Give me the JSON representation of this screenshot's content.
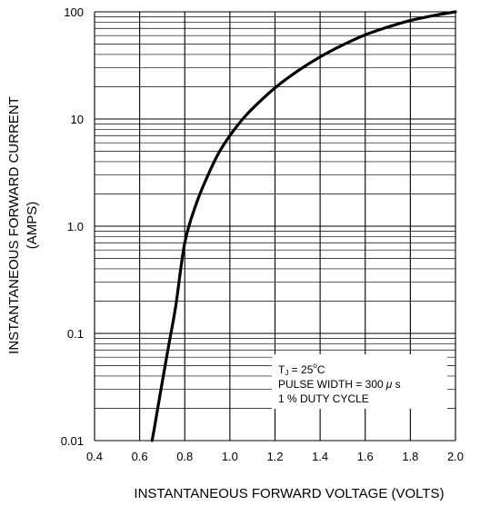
{
  "chart_data": {
    "type": "line",
    "title": "",
    "xlabel": "INSTANTANEOUS FORWARD VOLTAGE (VOLTS)",
    "ylabel": "INSTANTANEOUS FORWARD CURRENT",
    "ylabel_unit": "(AMPS)",
    "xlim": [
      0.4,
      2.0
    ],
    "ylim": [
      0.01,
      100
    ],
    "yscale": "log",
    "grid": true,
    "x_ticks": [
      "0.4",
      "0.6",
      "0.8",
      "1.0",
      "1.2",
      "1.4",
      "1.6",
      "1.8",
      "2.0"
    ],
    "y_ticks": [
      "0.01",
      "0.1",
      "1.0",
      "10",
      "100"
    ],
    "series": [
      {
        "name": "",
        "x": [
          0.655,
          0.665,
          0.68,
          0.7,
          0.73,
          0.76,
          0.8,
          0.85,
          0.9,
          0.95,
          1.0,
          1.05,
          1.1,
          1.2,
          1.3,
          1.4,
          1.5,
          1.6,
          1.7,
          1.8,
          1.9,
          2.0
        ],
        "y": [
          0.01,
          0.013,
          0.02,
          0.035,
          0.08,
          0.18,
          0.7,
          1.6,
          2.9,
          4.8,
          7.0,
          9.6,
          12.5,
          19.5,
          28,
          38,
          49,
          61,
          72,
          83,
          92,
          100
        ]
      }
    ],
    "annotation": {
      "line1_main": "T",
      "line1_sub": "J",
      "line1_rest": " = 25",
      "line1_deg": "o",
      "line1_unit": "C",
      "line2": "PULSE WIDTH = 300",
      "line2_mu": "μ",
      "line2_s": " s",
      "line3": "1 % DUTY CYCLE"
    }
  }
}
